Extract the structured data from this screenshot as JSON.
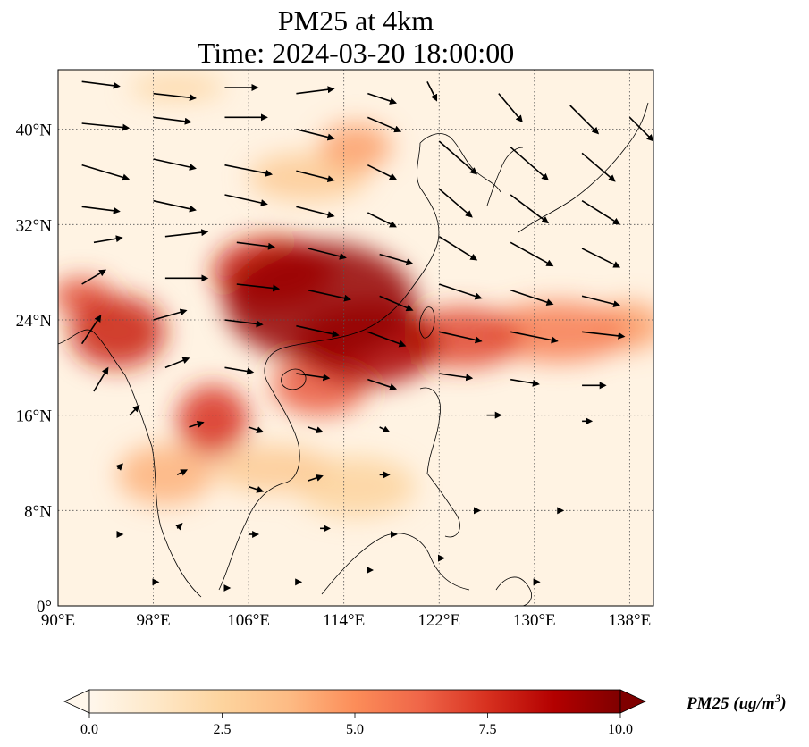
{
  "title": {
    "line1": "PM25 at 4km",
    "line2": "Time: 2024-03-20 18:00:00"
  },
  "map": {
    "extent": {
      "lon_min": 90,
      "lon_max": 140,
      "lat_min": 0,
      "lat_max": 45
    },
    "lon_ticks": [
      {
        "value": 90,
        "label": "90°E"
      },
      {
        "value": 98,
        "label": "98°E"
      },
      {
        "value": 106,
        "label": "106°E"
      },
      {
        "value": 114,
        "label": "114°E"
      },
      {
        "value": 122,
        "label": "122°E"
      },
      {
        "value": 130,
        "label": "130°E"
      },
      {
        "value": 138,
        "label": "138°E"
      }
    ],
    "lat_ticks": [
      {
        "value": 0,
        "label": "0°"
      },
      {
        "value": 8,
        "label": "8°N"
      },
      {
        "value": 16,
        "label": "16°N"
      },
      {
        "value": 24,
        "label": "24°N"
      },
      {
        "value": 32,
        "label": "32°N"
      },
      {
        "value": 40,
        "label": "40°N"
      }
    ],
    "gridlines": true,
    "colormap": "OrRd",
    "plumes": [
      {
        "lon": 112,
        "lat": 25.5,
        "value": 9.5,
        "rlon": 8,
        "rlat": 5
      },
      {
        "lon": 108,
        "lat": 28,
        "value": 8,
        "rlon": 5,
        "rlat": 3
      },
      {
        "lon": 116,
        "lat": 22,
        "value": 9,
        "rlon": 6,
        "rlat": 3.5
      },
      {
        "lon": 124,
        "lat": 22.5,
        "value": 7,
        "rlon": 5,
        "rlat": 2.5
      },
      {
        "lon": 132,
        "lat": 23,
        "value": 5.5,
        "rlon": 6,
        "rlat": 2.5
      },
      {
        "lon": 138,
        "lat": 23.5,
        "value": 4.5,
        "rlon": 3,
        "rlat": 2
      },
      {
        "lon": 112,
        "lat": 18.5,
        "value": 6.5,
        "rlon": 4,
        "rlat": 2.5
      },
      {
        "lon": 95,
        "lat": 23,
        "value": 8,
        "rlon": 4,
        "rlat": 3
      },
      {
        "lon": 92,
        "lat": 26,
        "value": 7,
        "rlon": 2.5,
        "rlat": 1.5
      },
      {
        "lon": 103,
        "lat": 15.5,
        "value": 7.5,
        "rlon": 3,
        "rlat": 3
      },
      {
        "lon": 99,
        "lat": 11,
        "value": 4,
        "rlon": 4,
        "rlat": 2.5
      },
      {
        "lon": 115,
        "lat": 38.5,
        "value": 4.5,
        "rlon": 3,
        "rlat": 2
      },
      {
        "lon": 111,
        "lat": 36,
        "value": 3,
        "rlon": 5,
        "rlat": 2
      },
      {
        "lon": 100,
        "lat": 43.5,
        "value": 2.5,
        "rlon": 4,
        "rlat": 1
      },
      {
        "lon": 108,
        "lat": 11.5,
        "value": 3,
        "rlon": 5,
        "rlat": 2
      },
      {
        "lon": 115,
        "lat": 10,
        "value": 2.5,
        "rlon": 5,
        "rlat": 2.5
      }
    ],
    "wind_arrows": [
      {
        "lon": 92,
        "lat": 44,
        "u": 8,
        "v": -1
      },
      {
        "lon": 98,
        "lat": 43,
        "u": 9,
        "v": -1
      },
      {
        "lon": 104,
        "lat": 43.5,
        "u": 7,
        "v": 0
      },
      {
        "lon": 110,
        "lat": 43,
        "u": 8,
        "v": 1
      },
      {
        "lon": 116,
        "lat": 43,
        "u": 6,
        "v": -2
      },
      {
        "lon": 92,
        "lat": 40.5,
        "u": 10,
        "v": -1
      },
      {
        "lon": 98,
        "lat": 41,
        "u": 8,
        "v": -1
      },
      {
        "lon": 104,
        "lat": 41,
        "u": 9,
        "v": 0
      },
      {
        "lon": 110,
        "lat": 40,
        "u": 8,
        "v": -2
      },
      {
        "lon": 116,
        "lat": 41,
        "u": 7,
        "v": -3
      },
      {
        "lon": 92,
        "lat": 37,
        "u": 10,
        "v": -3
      },
      {
        "lon": 98,
        "lat": 37.5,
        "u": 9,
        "v": -2
      },
      {
        "lon": 104,
        "lat": 37,
        "u": 10,
        "v": -2
      },
      {
        "lon": 110,
        "lat": 36.5,
        "u": 8,
        "v": -2
      },
      {
        "lon": 116,
        "lat": 37,
        "u": 6,
        "v": -3
      },
      {
        "lon": 92,
        "lat": 33.5,
        "u": 8,
        "v": -1
      },
      {
        "lon": 98,
        "lat": 34,
        "u": 9,
        "v": -2
      },
      {
        "lon": 104,
        "lat": 34.5,
        "u": 9,
        "v": -2
      },
      {
        "lon": 110,
        "lat": 33.5,
        "u": 8,
        "v": -2
      },
      {
        "lon": 116,
        "lat": 33,
        "u": 6,
        "v": -3
      },
      {
        "lon": 93,
        "lat": 30.5,
        "u": 6,
        "v": 1
      },
      {
        "lon": 99,
        "lat": 31,
        "u": 9,
        "v": 1
      },
      {
        "lon": 105,
        "lat": 30.5,
        "u": 8,
        "v": -1
      },
      {
        "lon": 111,
        "lat": 30,
        "u": 8,
        "v": -2
      },
      {
        "lon": 117,
        "lat": 29.5,
        "u": 7,
        "v": -2
      },
      {
        "lon": 92,
        "lat": 27,
        "u": 5,
        "v": 3
      },
      {
        "lon": 99,
        "lat": 27.5,
        "u": 9,
        "v": 0
      },
      {
        "lon": 105,
        "lat": 27,
        "u": 9,
        "v": -1
      },
      {
        "lon": 111,
        "lat": 26.5,
        "u": 9,
        "v": -2
      },
      {
        "lon": 117,
        "lat": 26,
        "u": 7,
        "v": -3
      },
      {
        "lon": 92,
        "lat": 22,
        "u": 4,
        "v": 6
      },
      {
        "lon": 98,
        "lat": 24,
        "u": 7,
        "v": 2
      },
      {
        "lon": 104,
        "lat": 24,
        "u": 8,
        "v": -1
      },
      {
        "lon": 110,
        "lat": 23.5,
        "u": 9,
        "v": -2
      },
      {
        "lon": 116,
        "lat": 23,
        "u": 8,
        "v": -3
      },
      {
        "lon": 93,
        "lat": 18,
        "u": 3,
        "v": 5
      },
      {
        "lon": 99,
        "lat": 20,
        "u": 5,
        "v": 2
      },
      {
        "lon": 104,
        "lat": 20,
        "u": 6,
        "v": -1
      },
      {
        "lon": 110,
        "lat": 19.5,
        "u": 7,
        "v": -1
      },
      {
        "lon": 116,
        "lat": 19,
        "u": 6,
        "v": -2
      },
      {
        "lon": 121,
        "lat": 44,
        "u": 2,
        "v": -4
      },
      {
        "lon": 127,
        "lat": 43,
        "u": 5,
        "v": -6
      },
      {
        "lon": 133,
        "lat": 42,
        "u": 6,
        "v": -6
      },
      {
        "lon": 138,
        "lat": 41,
        "u": 5,
        "v": -5
      },
      {
        "lon": 122,
        "lat": 39,
        "u": 8,
        "v": -7
      },
      {
        "lon": 128,
        "lat": 38.5,
        "u": 8,
        "v": -7
      },
      {
        "lon": 134,
        "lat": 38,
        "u": 7,
        "v": -6
      },
      {
        "lon": 122,
        "lat": 35,
        "u": 7,
        "v": -6
      },
      {
        "lon": 128,
        "lat": 34.5,
        "u": 8,
        "v": -6
      },
      {
        "lon": 134,
        "lat": 34,
        "u": 8,
        "v": -5
      },
      {
        "lon": 122,
        "lat": 31,
        "u": 8,
        "v": -5
      },
      {
        "lon": 128,
        "lat": 30.5,
        "u": 9,
        "v": -5
      },
      {
        "lon": 134,
        "lat": 30,
        "u": 8,
        "v": -4
      },
      {
        "lon": 122,
        "lat": 27,
        "u": 9,
        "v": -3
      },
      {
        "lon": 128,
        "lat": 26.5,
        "u": 9,
        "v": -3
      },
      {
        "lon": 134,
        "lat": 26,
        "u": 8,
        "v": -2
      },
      {
        "lon": 122,
        "lat": 23,
        "u": 9,
        "v": -2
      },
      {
        "lon": 128,
        "lat": 23,
        "u": 10,
        "v": -2
      },
      {
        "lon": 134,
        "lat": 23,
        "u": 9,
        "v": -1
      },
      {
        "lon": 122,
        "lat": 19.5,
        "u": 7,
        "v": -1
      },
      {
        "lon": 128,
        "lat": 19,
        "u": 6,
        "v": -1
      },
      {
        "lon": 134,
        "lat": 18.5,
        "u": 5,
        "v": 0
      },
      {
        "lon": 126,
        "lat": 16,
        "u": 3,
        "v": 0
      },
      {
        "lon": 134,
        "lat": 15.5,
        "u": 2,
        "v": 0
      },
      {
        "lon": 96,
        "lat": 16,
        "u": 2,
        "v": 2
      },
      {
        "lon": 101,
        "lat": 15,
        "u": 3,
        "v": 1
      },
      {
        "lon": 106,
        "lat": 15,
        "u": 3,
        "v": -1
      },
      {
        "lon": 111,
        "lat": 15,
        "u": 3,
        "v": -1
      },
      {
        "lon": 117,
        "lat": 15,
        "u": 2,
        "v": -1
      },
      {
        "lon": 95,
        "lat": 11.5,
        "u": 1,
        "v": 1
      },
      {
        "lon": 100,
        "lat": 11,
        "u": 2,
        "v": 1
      },
      {
        "lon": 106,
        "lat": 10,
        "u": 3,
        "v": -1
      },
      {
        "lon": 111,
        "lat": 10.5,
        "u": 3,
        "v": 1
      },
      {
        "lon": 117,
        "lat": 11,
        "u": 2,
        "v": 0
      },
      {
        "lon": 95,
        "lat": 6,
        "u": 1,
        "v": 0
      },
      {
        "lon": 100,
        "lat": 6.5,
        "u": 1,
        "v": 1
      },
      {
        "lon": 106,
        "lat": 6,
        "u": 2,
        "v": 0
      },
      {
        "lon": 112,
        "lat": 6.5,
        "u": 2,
        "v": 0
      },
      {
        "lon": 118,
        "lat": 6,
        "u": 1,
        "v": 0
      },
      {
        "lon": 125,
        "lat": 8,
        "u": 1,
        "v": 0
      },
      {
        "lon": 132,
        "lat": 8,
        "u": 1,
        "v": 0
      },
      {
        "lon": 98,
        "lat": 2,
        "u": 1,
        "v": 0
      },
      {
        "lon": 104,
        "lat": 1.5,
        "u": 1,
        "v": 0
      },
      {
        "lon": 110,
        "lat": 2,
        "u": 1,
        "v": 0
      },
      {
        "lon": 116,
        "lat": 3,
        "u": 1,
        "v": 0
      },
      {
        "lon": 122,
        "lat": 4,
        "u": 1,
        "v": 0
      },
      {
        "lon": 130,
        "lat": 2,
        "u": 1,
        "v": 0
      }
    ]
  },
  "colorbar": {
    "title": "PM25 (ug/m",
    "title_sup": "3",
    "title_close": ")",
    "min": 0,
    "max": 10,
    "ticks": [
      {
        "value": 0,
        "label": "0.0"
      },
      {
        "value": 2.5,
        "label": "2.5"
      },
      {
        "value": 5,
        "label": "5.0"
      },
      {
        "value": 7.5,
        "label": "7.5"
      },
      {
        "value": 10,
        "label": "10.0"
      }
    ],
    "extend": "both"
  },
  "colors": {
    "low": "#fff7ec",
    "mid": "#fc8d59",
    "high": "#7f0000",
    "arrow": "#000000",
    "grid": "#555555"
  }
}
